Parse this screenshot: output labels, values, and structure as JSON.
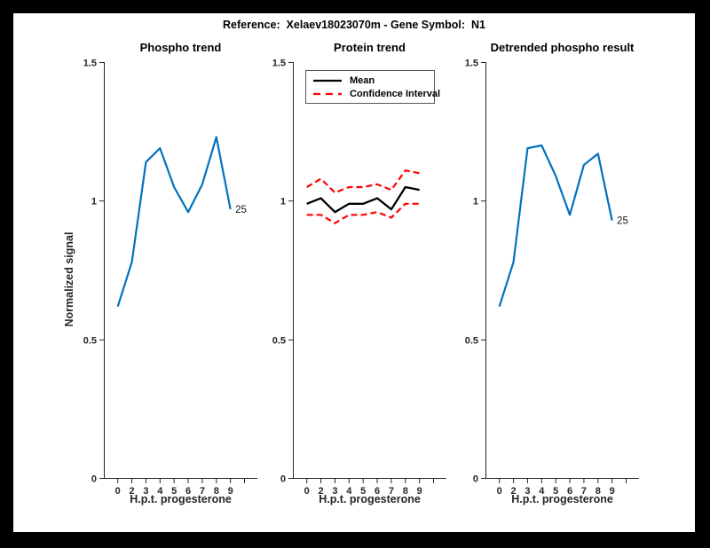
{
  "figure": {
    "title": "Reference:  Xelaev18023070m - Gene Symbol:  N1",
    "background_color": "#000000",
    "paper_color": "#ffffff"
  },
  "colors": {
    "line_blue": "#0072BD",
    "ci_red": "#FF0000",
    "mean_black": "#000000",
    "axis_gray": "#262626"
  },
  "chart_data": [
    {
      "type": "line",
      "title": "Phospho trend",
      "xlabel": "H.p.t. progesterone",
      "ylabel": "Normalized signal",
      "x_tick_labels": [
        "0",
        "2",
        "3",
        "4",
        "5",
        "6",
        "7",
        "8",
        "9",
        ""
      ],
      "ylim": [
        0,
        1.5
      ],
      "y_ticks": [
        [
          0,
          "0"
        ],
        [
          0.5,
          "0.5"
        ],
        [
          1,
          "1"
        ],
        [
          1.5,
          "1.5"
        ]
      ],
      "grid": false,
      "series": [
        {
          "name": "phospho-signal",
          "color": "#0072BD",
          "width": 2.2,
          "dash": "",
          "values": [
            0.62,
            0.78,
            1.14,
            1.19,
            1.05,
            0.96,
            1.06,
            1.23,
            0.97
          ],
          "end_label": "25"
        }
      ]
    },
    {
      "type": "line",
      "title": "Protein trend",
      "xlabel": "H.p.t. progesterone",
      "ylabel": "",
      "x_tick_labels": [
        "0",
        "2",
        "3",
        "4",
        "5",
        "6",
        "7",
        "8",
        "9",
        ""
      ],
      "ylim": [
        0,
        1.5
      ],
      "y_ticks": [
        [
          0,
          "0"
        ],
        [
          0.5,
          "0.5"
        ],
        [
          1,
          "1"
        ],
        [
          1.5,
          "1.5"
        ]
      ],
      "grid": false,
      "legend": {
        "position": "northwest",
        "entries": [
          {
            "label": "Mean",
            "color": "#000000",
            "dash": ""
          },
          {
            "label": "Confidence Interval",
            "color": "#FF0000",
            "dash": "8 6"
          }
        ]
      },
      "series": [
        {
          "name": "ci-upper",
          "color": "#FF0000",
          "width": 2.2,
          "dash": "7 4",
          "values": [
            1.05,
            1.08,
            1.03,
            1.05,
            1.05,
            1.06,
            1.04,
            1.11,
            1.1
          ]
        },
        {
          "name": "ci-lower",
          "color": "#FF0000",
          "width": 2.2,
          "dash": "7 4",
          "values": [
            0.95,
            0.95,
            0.92,
            0.95,
            0.95,
            0.96,
            0.94,
            0.99,
            0.99
          ]
        },
        {
          "name": "mean",
          "color": "#000000",
          "width": 2.3,
          "dash": "",
          "values": [
            0.99,
            1.01,
            0.96,
            0.99,
            0.99,
            1.01,
            0.97,
            1.05,
            1.04
          ]
        }
      ]
    },
    {
      "type": "line",
      "title": "Detrended phospho result",
      "xlabel": "H.p.t. progesterone",
      "ylabel": "",
      "x_tick_labels": [
        "0",
        "2",
        "3",
        "4",
        "5",
        "6",
        "7",
        "8",
        "9",
        ""
      ],
      "ylim": [
        0,
        1.5
      ],
      "y_ticks": [
        [
          0,
          "0"
        ],
        [
          0.5,
          "0.5"
        ],
        [
          1,
          "1"
        ],
        [
          1.5,
          "1.5"
        ]
      ],
      "grid": false,
      "series": [
        {
          "name": "detrended-phospho",
          "color": "#0072BD",
          "width": 2.2,
          "dash": "",
          "values": [
            0.62,
            0.78,
            1.19,
            1.2,
            1.09,
            0.95,
            1.13,
            1.17,
            0.93
          ],
          "end_label": "25"
        }
      ]
    }
  ]
}
